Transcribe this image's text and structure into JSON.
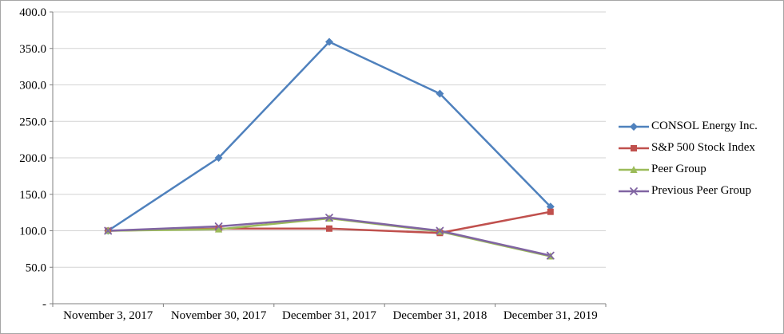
{
  "chart_data": {
    "type": "line",
    "title": "",
    "xlabel": "",
    "ylabel": "",
    "categories": [
      "November 3, 2017",
      "November 30, 2017",
      "December 31, 2017",
      "December 31, 2018",
      "December 31, 2019"
    ],
    "series": [
      {
        "name": "CONSOL Energy Inc.",
        "color": "#4F81BD",
        "marker": "diamond",
        "values": [
          100.0,
          200.0,
          359.0,
          288.0,
          133.0
        ]
      },
      {
        "name": "S&P 500 Stock Index",
        "color": "#C0504D",
        "marker": "square",
        "values": [
          100.0,
          103.0,
          103.0,
          97.0,
          126.0
        ]
      },
      {
        "name": "Peer Group",
        "color": "#9BBB59",
        "marker": "triangle",
        "values": [
          100.0,
          102.0,
          117.0,
          99.0,
          65.0
        ]
      },
      {
        "name": "Previous Peer Group",
        "color": "#8064A2",
        "marker": "x",
        "values": [
          100.0,
          106.0,
          118.0,
          100.0,
          66.0
        ]
      }
    ],
    "ylim": [
      0,
      400
    ],
    "yticks": [
      {
        "value": 0,
        "label": "-"
      },
      {
        "value": 50,
        "label": "50.0"
      },
      {
        "value": 100,
        "label": "100.0"
      },
      {
        "value": 150,
        "label": "150.0"
      },
      {
        "value": 200,
        "label": "200.0"
      },
      {
        "value": 250,
        "label": "250.0"
      },
      {
        "value": 300,
        "label": "300.0"
      },
      {
        "value": 350,
        "label": "350.0"
      },
      {
        "value": 400,
        "label": "400.0"
      }
    ],
    "grid": true,
    "legend_position": "right",
    "colors": {
      "gridline": "#D3D3D3",
      "axis": "#808080",
      "text": "#000000",
      "background": "#FFFFFF",
      "frame": "#A6A6A6"
    }
  }
}
